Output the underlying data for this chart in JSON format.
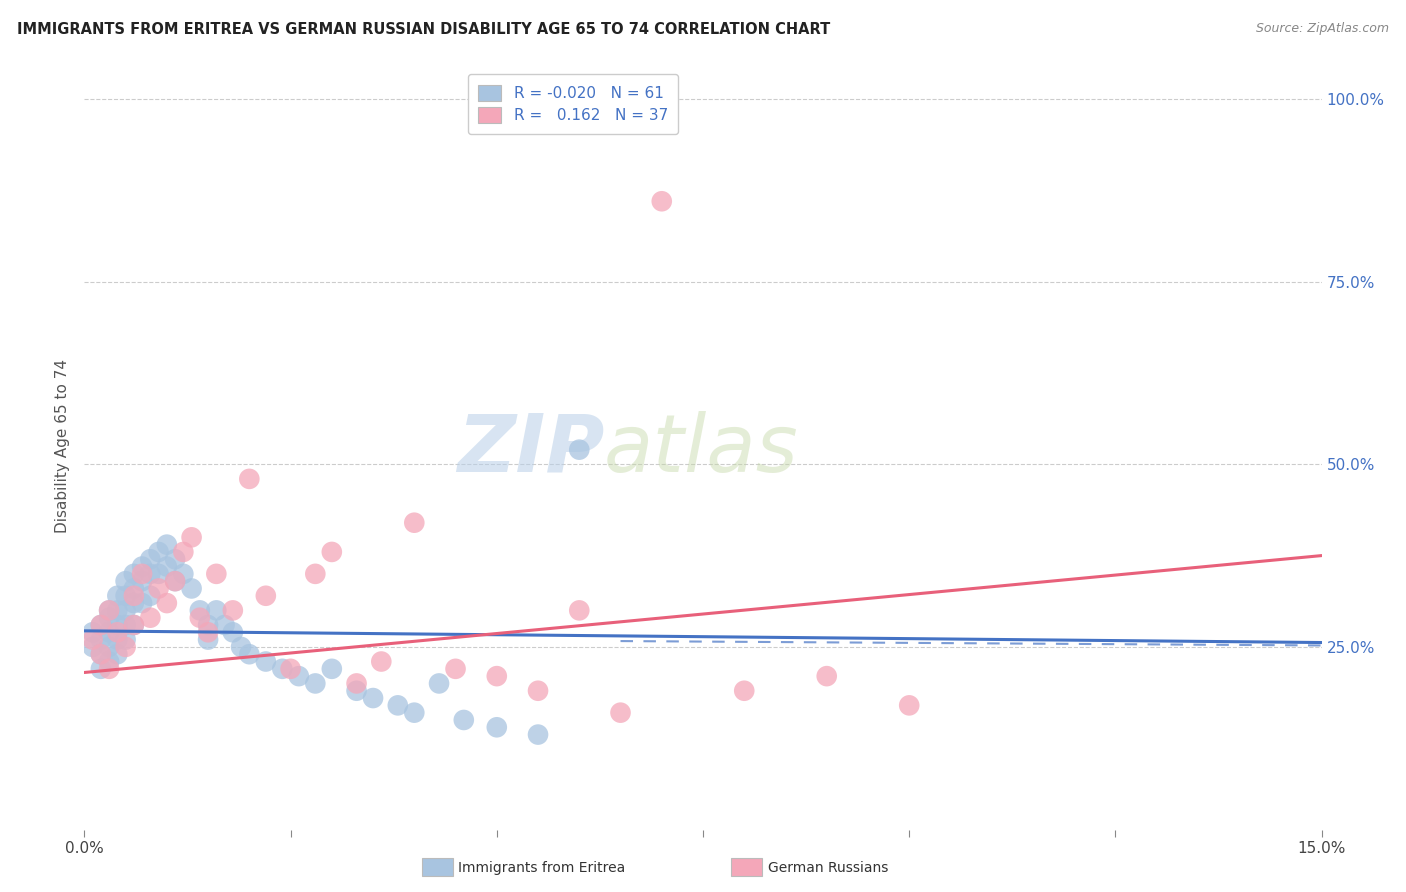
{
  "title": "IMMIGRANTS FROM ERITREA VS GERMAN RUSSIAN DISABILITY AGE 65 TO 74 CORRELATION CHART",
  "source": "Source: ZipAtlas.com",
  "ylabel": "Disability Age 65 to 74",
  "ylabel_right_labels": [
    "100.0%",
    "75.0%",
    "50.0%",
    "25.0%"
  ],
  "ylabel_right_values": [
    1.0,
    0.75,
    0.5,
    0.25
  ],
  "xlim": [
    0.0,
    0.15
  ],
  "ylim": [
    0.0,
    1.05
  ],
  "legend_r_eritrea": "-0.020",
  "legend_n_eritrea": "61",
  "legend_r_german": "0.162",
  "legend_n_german": "37",
  "eritrea_color": "#a8c4e0",
  "german_color": "#f4a7b9",
  "eritrea_line_color": "#4472c4",
  "german_line_color": "#e8607a",
  "background_color": "#ffffff",
  "grid_color": "#cccccc",
  "eritrea_x": [
    0.001,
    0.001,
    0.002,
    0.002,
    0.002,
    0.002,
    0.003,
    0.003,
    0.003,
    0.003,
    0.003,
    0.004,
    0.004,
    0.004,
    0.004,
    0.004,
    0.005,
    0.005,
    0.005,
    0.005,
    0.005,
    0.006,
    0.006,
    0.006,
    0.006,
    0.007,
    0.007,
    0.007,
    0.008,
    0.008,
    0.008,
    0.009,
    0.009,
    0.01,
    0.01,
    0.011,
    0.011,
    0.012,
    0.013,
    0.014,
    0.015,
    0.015,
    0.016,
    0.017,
    0.018,
    0.019,
    0.02,
    0.022,
    0.024,
    0.026,
    0.028,
    0.03,
    0.033,
    0.035,
    0.038,
    0.04,
    0.043,
    0.046,
    0.05,
    0.055,
    0.06
  ],
  "eritrea_y": [
    0.27,
    0.25,
    0.28,
    0.26,
    0.24,
    0.22,
    0.3,
    0.29,
    0.27,
    0.25,
    0.23,
    0.32,
    0.3,
    0.28,
    0.26,
    0.24,
    0.34,
    0.32,
    0.3,
    0.28,
    0.26,
    0.35,
    0.33,
    0.31,
    0.28,
    0.36,
    0.34,
    0.31,
    0.37,
    0.35,
    0.32,
    0.38,
    0.35,
    0.39,
    0.36,
    0.37,
    0.34,
    0.35,
    0.33,
    0.3,
    0.28,
    0.26,
    0.3,
    0.28,
    0.27,
    0.25,
    0.24,
    0.23,
    0.22,
    0.21,
    0.2,
    0.22,
    0.19,
    0.18,
    0.17,
    0.16,
    0.2,
    0.15,
    0.14,
    0.13,
    0.52
  ],
  "german_x": [
    0.001,
    0.002,
    0.002,
    0.003,
    0.003,
    0.004,
    0.005,
    0.006,
    0.006,
    0.007,
    0.008,
    0.009,
    0.01,
    0.011,
    0.012,
    0.013,
    0.014,
    0.015,
    0.016,
    0.018,
    0.02,
    0.022,
    0.025,
    0.028,
    0.03,
    0.033,
    0.036,
    0.04,
    0.045,
    0.05,
    0.055,
    0.06,
    0.065,
    0.07,
    0.08,
    0.09,
    0.1
  ],
  "german_y": [
    0.26,
    0.28,
    0.24,
    0.3,
    0.22,
    0.27,
    0.25,
    0.32,
    0.28,
    0.35,
    0.29,
    0.33,
    0.31,
    0.34,
    0.38,
    0.4,
    0.29,
    0.27,
    0.35,
    0.3,
    0.48,
    0.32,
    0.22,
    0.35,
    0.38,
    0.2,
    0.23,
    0.42,
    0.22,
    0.21,
    0.19,
    0.3,
    0.16,
    0.86,
    0.19,
    0.21,
    0.17
  ],
  "eritrea_trend_x": [
    0.0,
    0.15
  ],
  "eritrea_trend_y": [
    0.272,
    0.256
  ],
  "german_trend_x": [
    0.0,
    0.15
  ],
  "german_trend_y": [
    0.215,
    0.375
  ],
  "watermark_zip": "ZIP",
  "watermark_atlas": "atlas"
}
